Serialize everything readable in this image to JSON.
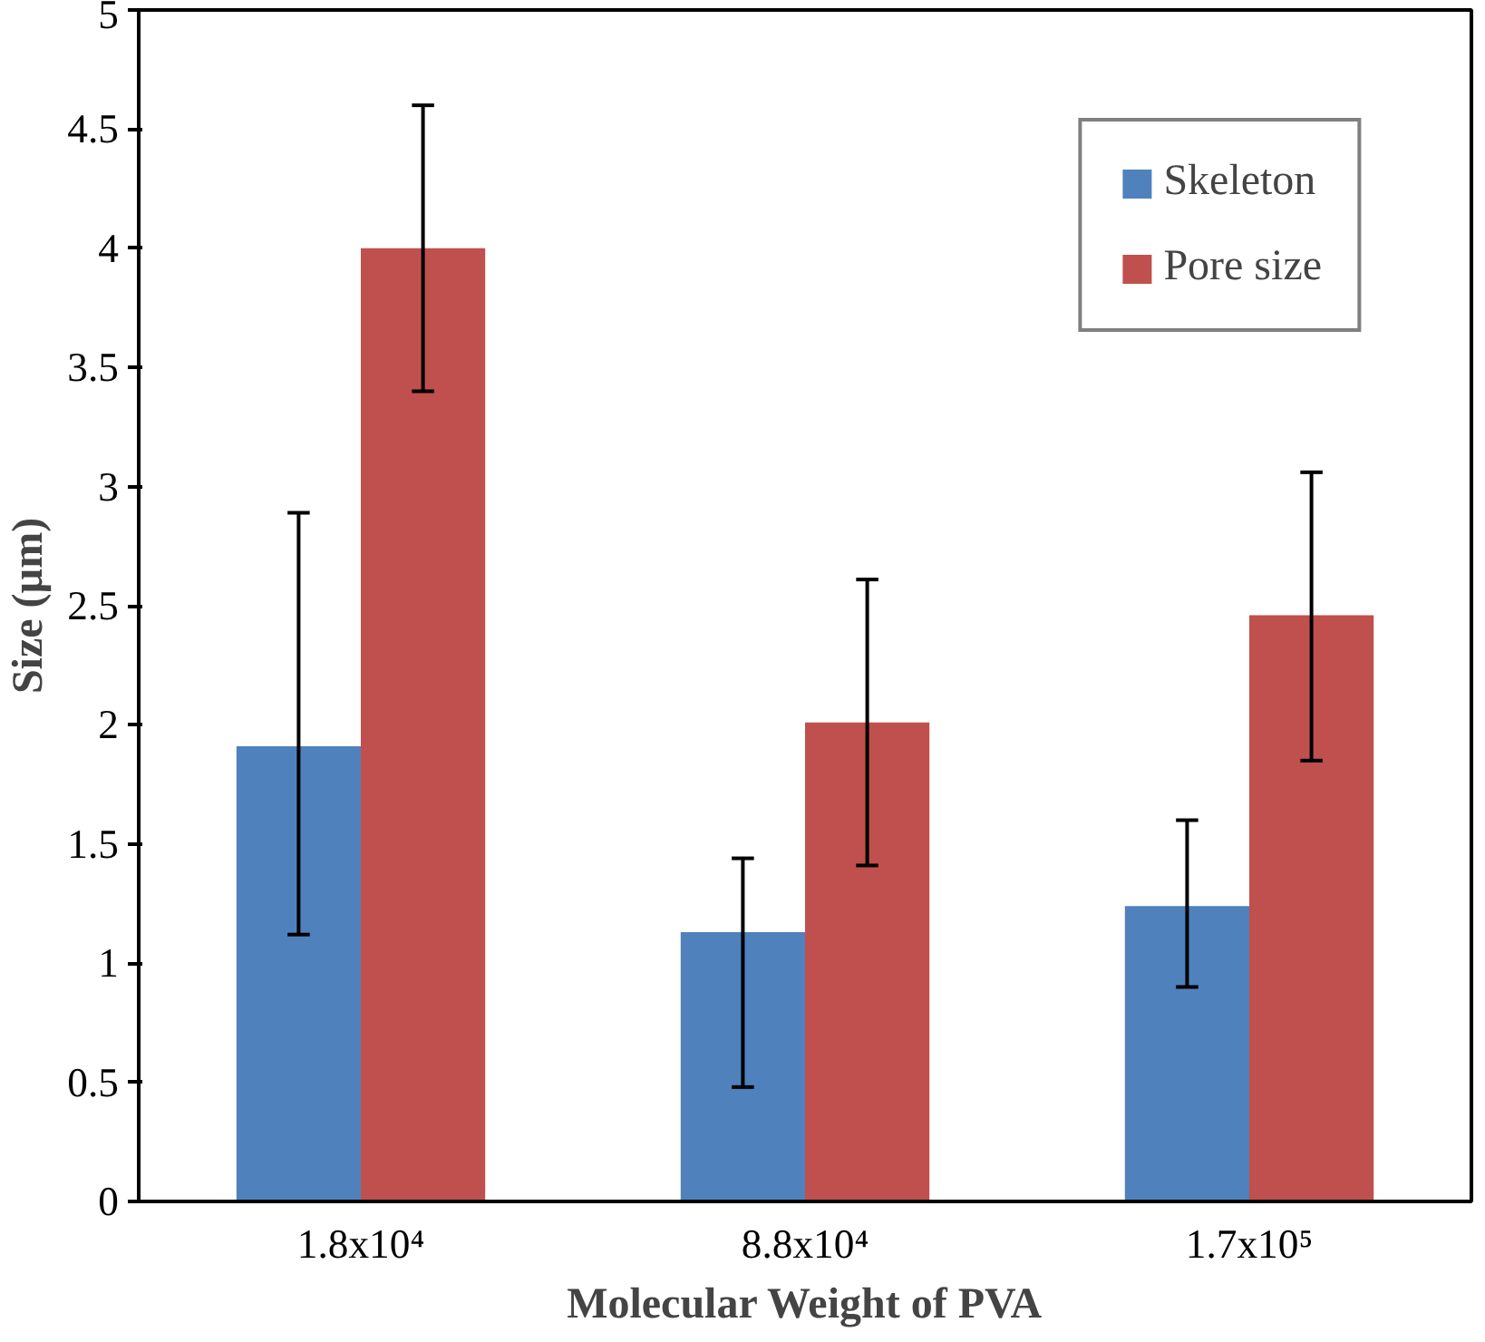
{
  "chart_data": {
    "type": "bar",
    "xlabel": "Molecular Weight of PVA",
    "ylabel": "Size (µm)",
    "categories": [
      "1.8x10⁴",
      "8.8x10⁴",
      "1.7x10⁵"
    ],
    "series": [
      {
        "name": "Skeleton",
        "color": "#4f81bd",
        "values": [
          1.91,
          1.13,
          1.24
        ],
        "errors": [
          [
            1.12,
            2.89
          ],
          [
            0.48,
            1.44
          ],
          [
            0.9,
            1.6
          ]
        ]
      },
      {
        "name": "Pore size",
        "color": "#c0504d",
        "values": [
          4.0,
          2.01,
          2.46
        ],
        "errors": [
          [
            3.4,
            4.6
          ],
          [
            1.41,
            2.61
          ],
          [
            1.85,
            3.06
          ]
        ]
      }
    ],
    "ylim": [
      0,
      5
    ],
    "yticks": [
      0,
      0.5,
      1,
      1.5,
      2,
      2.5,
      3,
      3.5,
      4,
      4.5,
      5
    ],
    "grid": false,
    "legend": "top right"
  }
}
